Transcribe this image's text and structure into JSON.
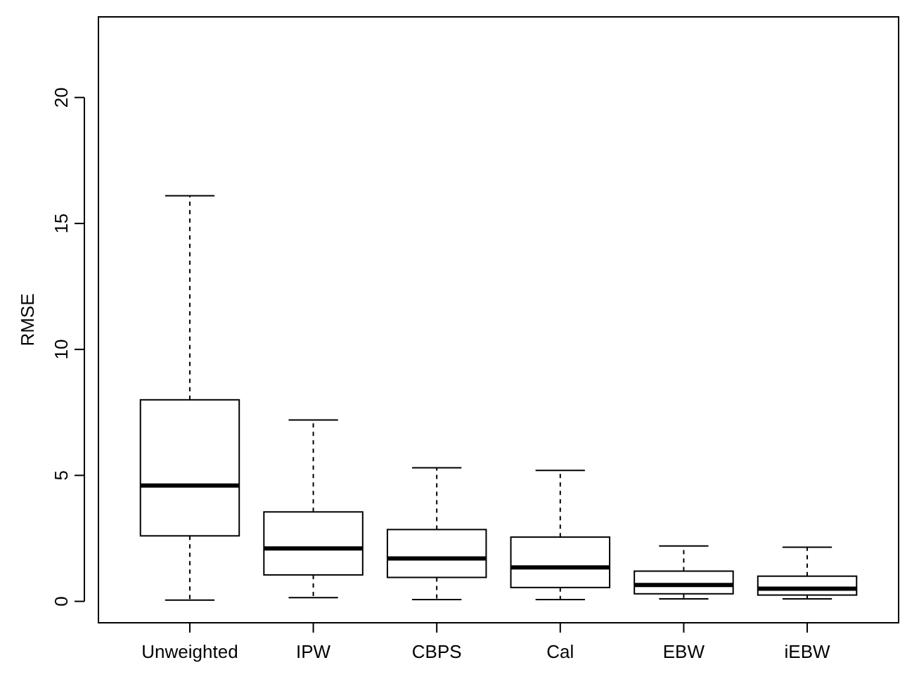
{
  "chart_data": {
    "type": "box",
    "ylabel": "RMSE",
    "categories": [
      "Unweighted",
      "IPW",
      "CBPS",
      "Cal",
      "EBW",
      "iEBW"
    ],
    "boxes": [
      {
        "low": 0.05,
        "q1": 2.6,
        "median": 4.6,
        "q3": 8.0,
        "high": 16.1
      },
      {
        "low": 0.15,
        "q1": 1.05,
        "median": 2.1,
        "q3": 3.55,
        "high": 7.2
      },
      {
        "low": 0.07,
        "q1": 0.95,
        "median": 1.7,
        "q3": 2.85,
        "high": 5.3
      },
      {
        "low": 0.07,
        "q1": 0.55,
        "median": 1.35,
        "q3": 2.55,
        "high": 5.2
      },
      {
        "low": 0.1,
        "q1": 0.3,
        "median": 0.65,
        "q3": 1.2,
        "high": 2.2
      },
      {
        "low": 0.1,
        "q1": 0.25,
        "median": 0.5,
        "q3": 1.0,
        "high": 2.15
      }
    ],
    "ylim": [
      -0.85,
      23.2
    ],
    "yticks": [
      0,
      5,
      10,
      15,
      20
    ],
    "grid": false
  }
}
